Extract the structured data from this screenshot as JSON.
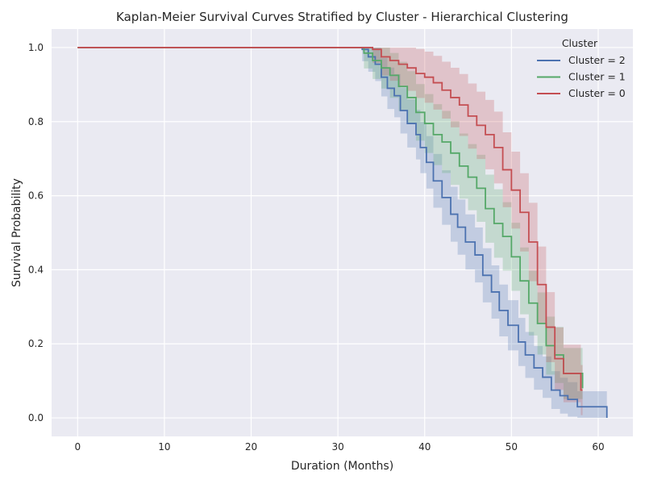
{
  "chart_data": {
    "type": "line",
    "step": true,
    "title": "Kaplan-Meier Survival Curves Stratified by Cluster - Hierarchical Clustering",
    "xlabel": "Duration (Months)",
    "ylabel": "Survival Probability",
    "xlim": [
      -3,
      64
    ],
    "ylim": [
      -0.05,
      1.05
    ],
    "xticks": [
      0,
      10,
      20,
      30,
      40,
      50,
      60
    ],
    "yticks": [
      0.0,
      0.2,
      0.4,
      0.6,
      0.8,
      1.0
    ],
    "grid": true,
    "background": "#eaeaf2",
    "legend": {
      "title": "Cluster",
      "placement": "top-right"
    },
    "series": [
      {
        "name": "Cluster = 2",
        "color": "#4c72b0",
        "points": [
          [
            0,
            1.0
          ],
          [
            32.2,
            1.0
          ],
          [
            32.8,
            0.995
          ],
          [
            33.5,
            0.975
          ],
          [
            34.3,
            0.955
          ],
          [
            35.0,
            0.92
          ],
          [
            35.7,
            0.89
          ],
          [
            36.5,
            0.87
          ],
          [
            37.2,
            0.83
          ],
          [
            38.0,
            0.795
          ],
          [
            39.0,
            0.765
          ],
          [
            39.5,
            0.73
          ],
          [
            40.2,
            0.69
          ],
          [
            41.0,
            0.64
          ],
          [
            42.0,
            0.595
          ],
          [
            43.0,
            0.55
          ],
          [
            43.8,
            0.515
          ],
          [
            44.7,
            0.475
          ],
          [
            45.8,
            0.44
          ],
          [
            46.7,
            0.385
          ],
          [
            47.7,
            0.34
          ],
          [
            48.6,
            0.29
          ],
          [
            49.6,
            0.25
          ],
          [
            50.8,
            0.205
          ],
          [
            51.6,
            0.17
          ],
          [
            52.6,
            0.135
          ],
          [
            53.6,
            0.11
          ],
          [
            54.6,
            0.075
          ],
          [
            55.6,
            0.06
          ],
          [
            56.5,
            0.05
          ],
          [
            57.6,
            0.03
          ],
          [
            61.0,
            0.0
          ]
        ]
      },
      {
        "name": "Cluster = 1",
        "color": "#55a868",
        "points": [
          [
            0,
            1.0
          ],
          [
            32.3,
            1.0
          ],
          [
            33.0,
            0.985
          ],
          [
            34.0,
            0.965
          ],
          [
            35.0,
            0.945
          ],
          [
            36.0,
            0.925
          ],
          [
            37.0,
            0.895
          ],
          [
            38.0,
            0.865
          ],
          [
            39.0,
            0.825
          ],
          [
            40.0,
            0.795
          ],
          [
            41.0,
            0.765
          ],
          [
            42.0,
            0.745
          ],
          [
            43.0,
            0.715
          ],
          [
            44.0,
            0.68
          ],
          [
            45.0,
            0.65
          ],
          [
            46.0,
            0.62
          ],
          [
            47.0,
            0.565
          ],
          [
            48.0,
            0.525
          ],
          [
            49.0,
            0.49
          ],
          [
            50.0,
            0.435
          ],
          [
            51.0,
            0.37
          ],
          [
            52.0,
            0.31
          ],
          [
            53.0,
            0.255
          ],
          [
            54.0,
            0.195
          ],
          [
            55.0,
            0.17
          ],
          [
            56.0,
            0.12
          ],
          [
            58.2,
            0.08
          ]
        ]
      },
      {
        "name": "Cluster = 0",
        "color": "#c44e52",
        "points": [
          [
            0,
            1.0
          ],
          [
            33.0,
            1.0
          ],
          [
            34.0,
            0.995
          ],
          [
            35.0,
            0.975
          ],
          [
            36.0,
            0.965
          ],
          [
            37.0,
            0.955
          ],
          [
            38.0,
            0.945
          ],
          [
            39.0,
            0.93
          ],
          [
            40.0,
            0.92
          ],
          [
            41.0,
            0.905
          ],
          [
            42.0,
            0.885
          ],
          [
            43.0,
            0.865
          ],
          [
            44.0,
            0.845
          ],
          [
            45.0,
            0.815
          ],
          [
            46.0,
            0.79
          ],
          [
            47.0,
            0.765
          ],
          [
            48.0,
            0.73
          ],
          [
            49.0,
            0.67
          ],
          [
            50.0,
            0.615
          ],
          [
            51.0,
            0.555
          ],
          [
            52.0,
            0.475
          ],
          [
            53.0,
            0.36
          ],
          [
            54.0,
            0.245
          ],
          [
            55.0,
            0.16
          ],
          [
            56.0,
            0.12
          ],
          [
            58.0,
            0.075
          ],
          [
            58.2,
            0.075
          ]
        ]
      }
    ]
  }
}
